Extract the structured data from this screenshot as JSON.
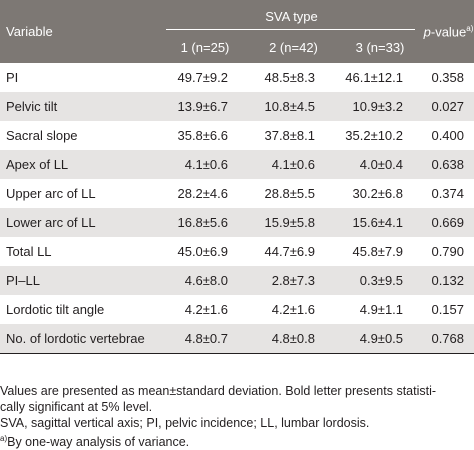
{
  "header": {
    "variable": "Variable",
    "group_title": "SVA type",
    "pvalue_label": "p",
    "pvalue_suffix": "-value",
    "pvalue_sup": "a)",
    "groups": [
      "1 (n=25)",
      "2 (n=42)",
      "3 (n=33)"
    ]
  },
  "rows": [
    {
      "name": "PI",
      "g1": "49.7±9.2",
      "g2": "48.5±8.3",
      "g3": "46.1±12.1",
      "p": "0.358",
      "bold": false
    },
    {
      "name": "Pelvic tilt",
      "g1": "13.9±6.7",
      "g2": "10.8±4.5",
      "g3": "10.9±3.2",
      "p": "0.027",
      "bold": true
    },
    {
      "name": "Sacral slope",
      "g1": "35.8±6.6",
      "g2": "37.8±8.1",
      "g3": "35.2±10.2",
      "p": "0.400",
      "bold": false
    },
    {
      "name": "Apex of LL",
      "g1": "4.1±0.6",
      "g2": "4.1±0.6",
      "g3": "4.0±0.4",
      "p": "0.638",
      "bold": false
    },
    {
      "name": "Upper arc of LL",
      "g1": "28.2±4.6",
      "g2": "28.8±5.5",
      "g3": "30.2±6.8",
      "p": "0.374",
      "bold": false
    },
    {
      "name": "Lower arc of LL",
      "g1": "16.8±5.6",
      "g2": "15.9±5.8",
      "g3": "15.6±4.1",
      "p": "0.669",
      "bold": false
    },
    {
      "name": "Total LL",
      "g1": "45.0±6.9",
      "g2": "44.7±6.9",
      "g3": "45.8±7.9",
      "p": "0.790",
      "bold": false
    },
    {
      "name": "PI–LL",
      "g1": "4.6±8.0",
      "g2": "2.8±7.3",
      "g3": "0.3±9.5",
      "p": "0.132",
      "bold": false
    },
    {
      "name": "Lordotic tilt angle",
      "g1": "4.2±1.6",
      "g2": "4.2±1.6",
      "g3": "4.9±1.1",
      "p": "0.157",
      "bold": false
    },
    {
      "name": "No. of lordotic vertebrae",
      "g1": "4.8±0.7",
      "g2": "4.8±0.8",
      "g3": "4.9±0.5",
      "p": "0.768",
      "bold": false
    }
  ],
  "notes": {
    "line1": "Values are presented as mean±standard deviation. Bold letter presents statisti-",
    "line2": "cally significant at 5% level.",
    "line3": "SVA, sagittal vertical axis; PI, pelvic incidence; LL, lumbar lordosis.",
    "line4_sup": "a)",
    "line4": "By one-way analysis of variance."
  }
}
